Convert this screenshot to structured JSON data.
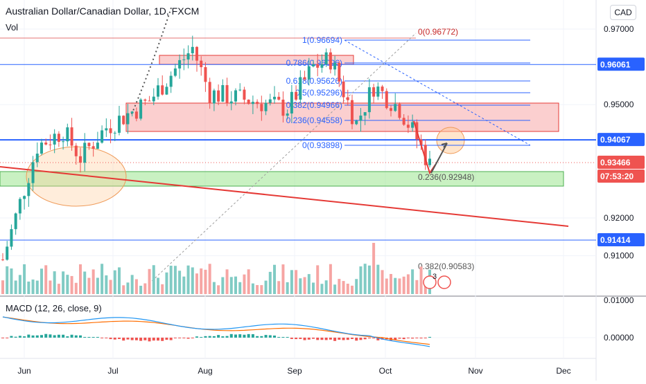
{
  "header": {
    "title": "Australian Dollar/Canadian Dollar, 1D, FXCM",
    "volume_label": "Vol",
    "macd_label": "MACD (12, 26, close, 9)",
    "currency": "CAD"
  },
  "colors": {
    "up": "#26a69a",
    "down": "#ef5350",
    "up_vol": "#80cbc4",
    "down_vol": "#f6a5a3",
    "fib": "#2962ff",
    "trend": "#e53935",
    "resistance_fill": "#f8a8a8",
    "support_fill": "#a5e89a",
    "macd_line": "#2196f3",
    "signal_line": "#ff6d00"
  },
  "chart_data": {
    "type": "candlestick",
    "symbol": "AUDCAD",
    "timeframe": "1D",
    "x_ticks": [
      "Jun",
      "Jul",
      "Aug",
      "Sep",
      "Oct",
      "Nov",
      "Dec"
    ],
    "y_ticks": [
      "0.97000",
      "0.96061",
      "0.95000",
      "0.94067",
      "0.93466",
      "0.92000",
      "0.91414",
      "0.91000"
    ],
    "macd_ticks": [
      "0.01000",
      "0.00000"
    ],
    "price_tags": {
      "resistance": "0.96061",
      "support": "0.94067",
      "current": "0.93466",
      "countdown": "07:53:20",
      "lower": "0.91414"
    },
    "fib_labels": [
      "1(0.96694)",
      "0.786(0.96096)",
      "0.618(0.95626)",
      "0.5(0.95296)",
      "0.382(0.94966)",
      "0.236(0.94558)",
      "0(0.93898)"
    ],
    "fib_ext_labels": [
      "0(0.96772)",
      "0.236(0.92948)",
      "0.382(0.90583)"
    ],
    "badge": "3",
    "ylim": [
      0.905,
      0.975
    ],
    "grid": true
  }
}
